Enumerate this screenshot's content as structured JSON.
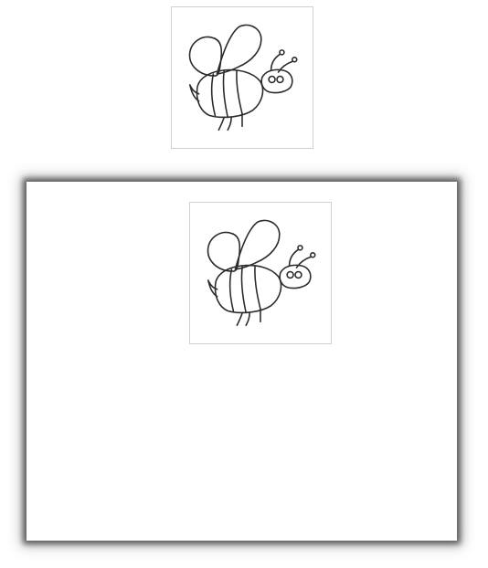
{
  "drawing": {
    "subject_icon": "bee-doodle-icon",
    "ink_color": "#2b2b2b",
    "frame_border_color": "#cfcfcf",
    "panel_background": "#ffffff"
  }
}
